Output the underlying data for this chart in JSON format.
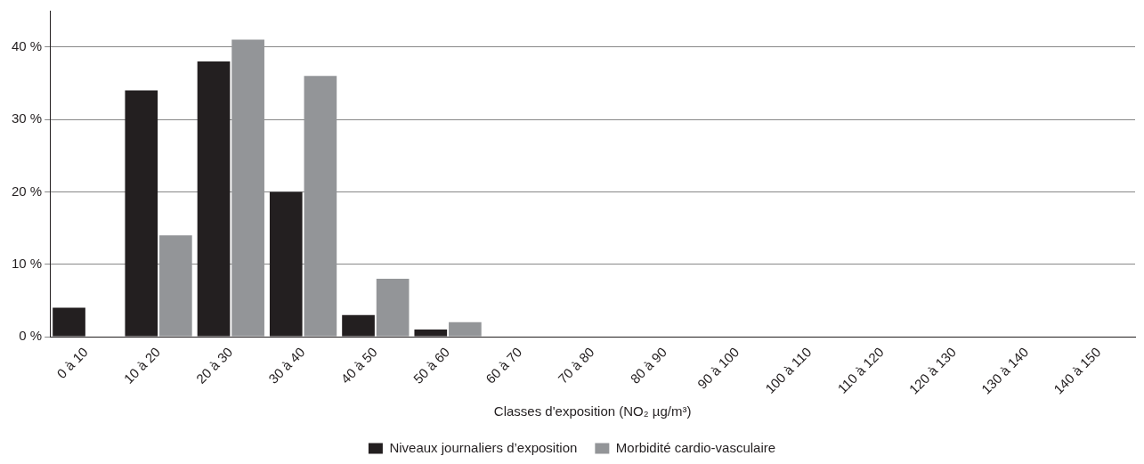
{
  "chart_data": {
    "type": "bar",
    "xlabel": "Classes d'exposition (NO₂ µg/m³)",
    "categories": [
      "0 à 10",
      "10 à 20",
      "20 à 30",
      "30 à 40",
      "40 à 50",
      "50 à 60",
      "60 à 70",
      "70 à 80",
      "80 à 90",
      "90 à 100",
      "100 à 110",
      "110 à 120",
      "120 à 130",
      "130 à 140",
      "140 à 150"
    ],
    "series": [
      {
        "name": "Niveaux journaliers d’exposition",
        "color": "#231f20",
        "values": [
          4,
          34,
          38,
          20,
          3,
          1,
          0,
          0,
          0,
          0,
          0,
          0,
          0,
          0,
          0
        ]
      },
      {
        "name": "Morbidité cardio-vasculaire",
        "color": "#939598",
        "values": [
          0,
          14,
          41,
          36,
          8,
          2,
          0,
          0,
          0,
          0,
          0,
          0,
          0,
          0,
          0
        ]
      }
    ],
    "ylim": [
      0,
      45
    ],
    "yticks": [
      {
        "value": 0,
        "label": "0 %"
      },
      {
        "value": 10,
        "label": "10 %"
      },
      {
        "value": 20,
        "label": "20 %"
      },
      {
        "value": 30,
        "label": "30 %"
      },
      {
        "value": 40,
        "label": "40 %"
      }
    ],
    "grid": "y",
    "legend": "bottom"
  }
}
